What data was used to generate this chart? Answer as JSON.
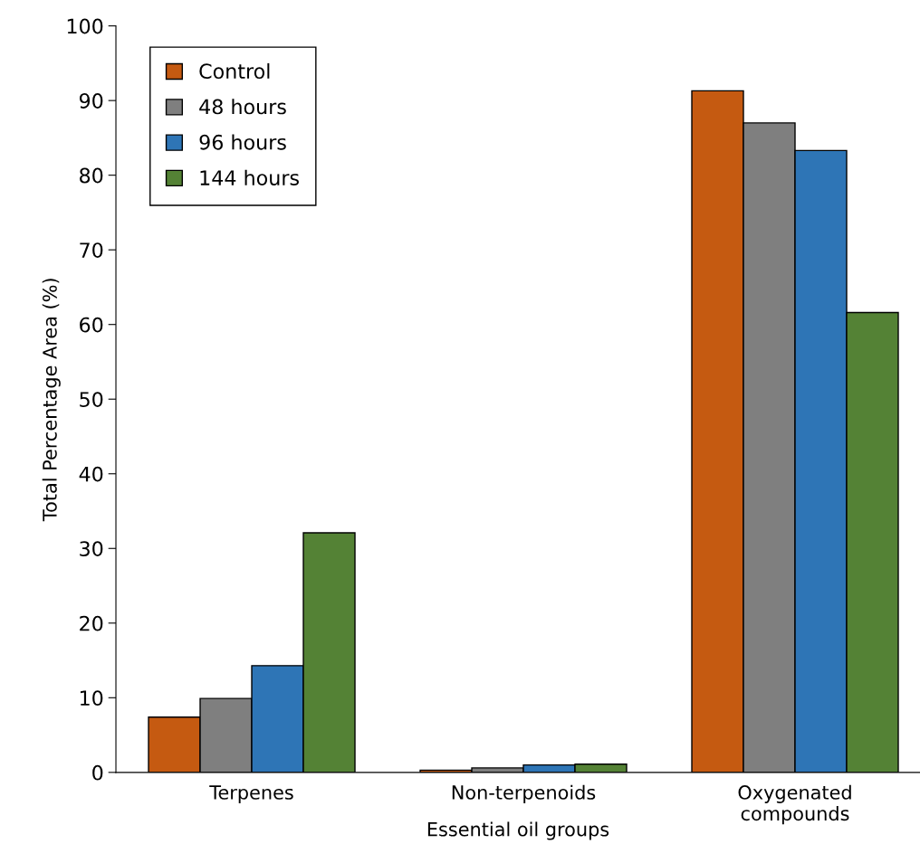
{
  "chart_data": {
    "type": "bar",
    "xlabel": "Essential oil groups",
    "ylabel": "Total Percentage Area (%)",
    "categories": [
      "Terpenes",
      "Non-terpenoids",
      "Oxygenated\ncompounds"
    ],
    "series": [
      {
        "name": "Control",
        "color": "#c55a11",
        "values": [
          7.4,
          0.3,
          91.3
        ]
      },
      {
        "name": "48 hours",
        "color": "#7f7f7f",
        "values": [
          9.9,
          0.6,
          87.0
        ]
      },
      {
        "name": "96 hours",
        "color": "#2e75b6",
        "values": [
          14.3,
          1.0,
          83.3
        ]
      },
      {
        "name": "144 hours",
        "color": "#548235",
        "values": [
          32.1,
          1.1,
          61.6
        ]
      }
    ],
    "ylim": [
      0,
      100
    ],
    "yticks": [
      0,
      10,
      20,
      30,
      40,
      50,
      60,
      70,
      80,
      90,
      100
    ],
    "grid": false,
    "legend": "top left"
  }
}
